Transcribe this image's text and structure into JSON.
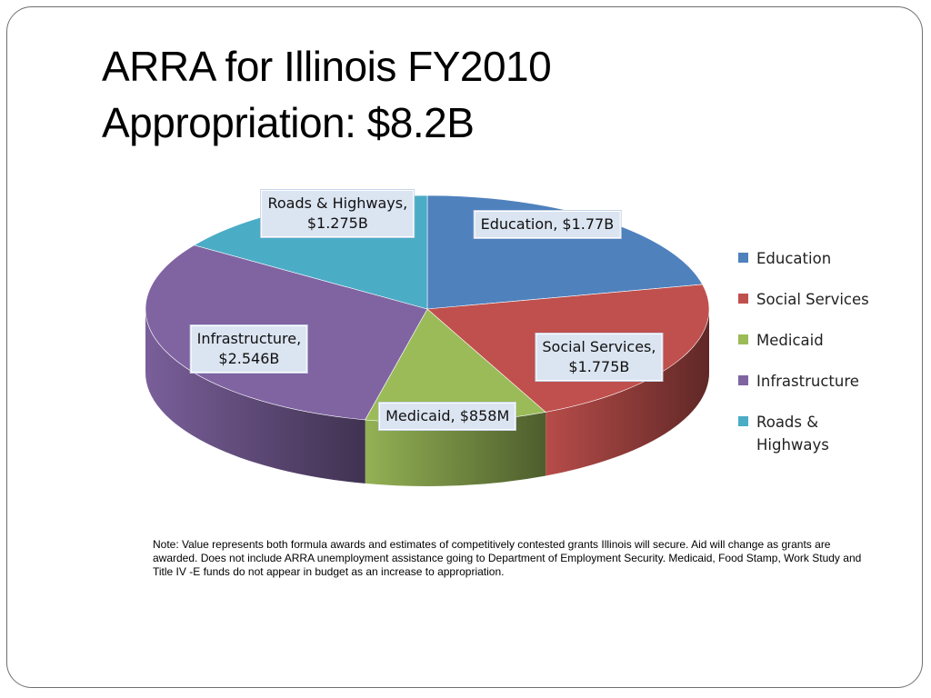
{
  "slide": {
    "title_line1": "ARRA for Illinois FY2010",
    "title_line2": "Appropriation: $8.2B",
    "note": "Note: Value represents both formula awards and estimates of competitively contested grants Illinois will secure. Aid will change as grants are awarded. Does not include ARRA unemployment assistance going to Department of Employment Security.  Medicaid, Food Stamp, Work Study and Title IV -E funds do not appear in budget as an increase to appropriation."
  },
  "chart_data": {
    "type": "pie",
    "style": "3d",
    "title": "",
    "unit": "$B",
    "legend_position": "right",
    "slices": [
      {
        "name": "Education",
        "value": 1.77,
        "color": "#4f81bd",
        "label_lines": [
          "Education, $1.77B"
        ]
      },
      {
        "name": "Social Services",
        "value": 1.775,
        "color": "#c0504d",
        "label_lines": [
          "Social Services,",
          "$1.775B"
        ]
      },
      {
        "name": "Medicaid",
        "value": 0.858,
        "color": "#9bbb59",
        "label_lines": [
          "Medicaid, $858M"
        ]
      },
      {
        "name": "Infrastructure",
        "value": 2.546,
        "color": "#8064a2",
        "label_lines": [
          "Infrastructure,",
          "$2.546B"
        ]
      },
      {
        "name": "Roads & Highways",
        "value": 1.275,
        "color": "#4bacc6",
        "label_lines": [
          "Roads & Highways,",
          "$1.275B"
        ]
      }
    ],
    "legend": [
      {
        "label": "Education",
        "color": "#4f81bd"
      },
      {
        "label": "Social Services",
        "color": "#c0504d"
      },
      {
        "label": "Medicaid",
        "color": "#9bbb59"
      },
      {
        "label": "Infrastructure",
        "color": "#8064a2"
      },
      {
        "label": "Roads & Highways",
        "color": "#4bacc6"
      }
    ]
  }
}
